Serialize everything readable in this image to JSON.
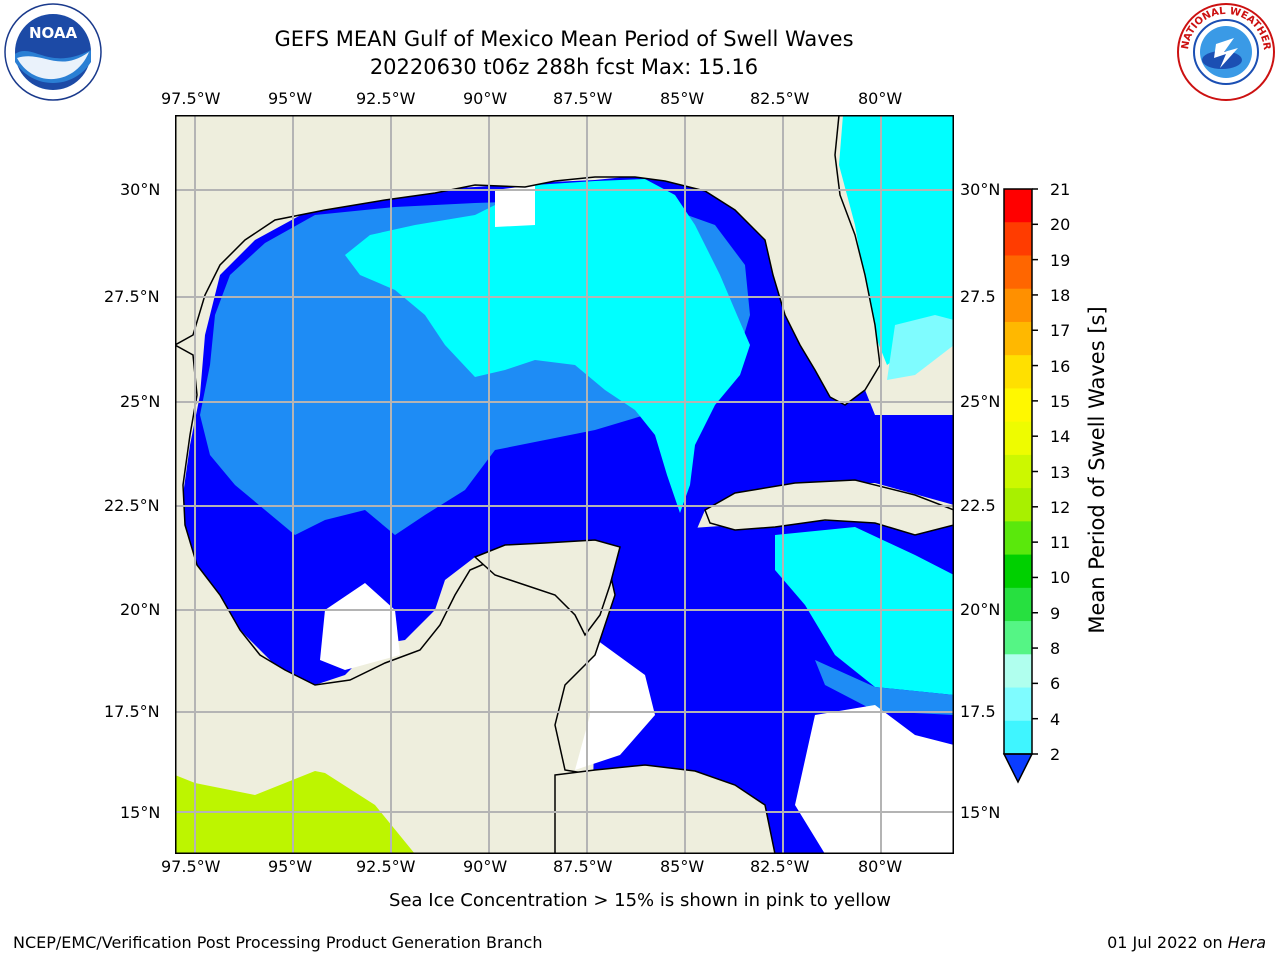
{
  "title": {
    "line1": "GEFS MEAN Gulf of Mexico Mean Period of Swell Waves",
    "line2": "20220630 t06z 288h fcst   Max: 15.16"
  },
  "map": {
    "lon_labels": [
      "97.5°W",
      "95°W",
      "92.5°W",
      "90°W",
      "87.5°W",
      "85°W",
      "82.5°W",
      "80°W"
    ],
    "lat_labels_left": [
      "30°N",
      "27.5°N",
      "25°N",
      "22.5°N",
      "20°N",
      "17.5°N",
      "15°N"
    ],
    "lat_labels_right": [
      "30°N",
      "27.5",
      "25°N",
      "22.5",
      "20°N",
      "17.5",
      "15°N"
    ]
  },
  "colorbar": {
    "label": "Mean Period of Swell Waves [s]",
    "ticks": [
      "21",
      "20",
      "19",
      "18",
      "17",
      "16",
      "15",
      "14",
      "13",
      "12",
      "11",
      "10",
      "9",
      "8",
      "6",
      "4",
      "2"
    ],
    "colors": [
      "#0a3cff",
      "#00e5ff",
      "#3ff5ff",
      "#7ffcff",
      "#b0ffee",
      "#55f585",
      "#27e040",
      "#00d000",
      "#5ae80c",
      "#a8f000",
      "#ccf800",
      "#eefc00",
      "#fff800",
      "#ffe000",
      "#ffb800",
      "#ff9000",
      "#ff6600",
      "#ff3c00",
      "#ff0000"
    ]
  },
  "colors": {
    "land": "#eeeedd",
    "ocean_deep": "#0000ff",
    "ocean_mid": "#1e8cf5",
    "ocean_light": "#00ffff",
    "ice_low": "#bdf500",
    "no_data": "#ffffff"
  },
  "logos": {
    "noaa_text": "NOAA",
    "nws_text": "NATIONAL WEATHER SERVICE"
  },
  "footer": {
    "note": "Sea Ice Concentration > 15% is shown in pink to yellow",
    "left": "NCEP/EMC/Verification Post Processing Product Generation Branch",
    "right_prefix": "01 Jul 2022 on ",
    "right_host": "Hera"
  }
}
